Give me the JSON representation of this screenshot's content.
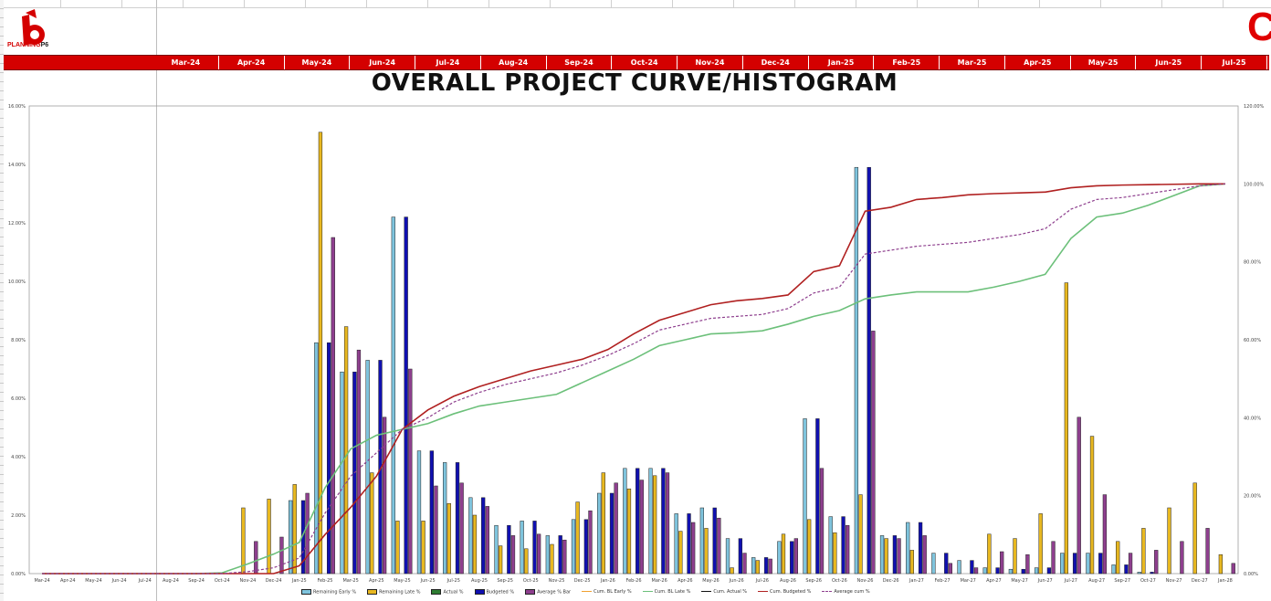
{
  "logo": {
    "text_red": "PLANNING",
    "text_dark": "P6"
  },
  "corner_letter": "C",
  "month_header": [
    "Mar-24",
    "Apr-24",
    "May-24",
    "Jun-24",
    "Jul-24",
    "Aug-24",
    "Sep-24",
    "Oct-24",
    "Nov-24",
    "Dec-24",
    "Jan-25",
    "Feb-25",
    "Mar-25",
    "Apr-25",
    "May-25",
    "Jun-25",
    "Jul-25"
  ],
  "chart_data": {
    "type": "bar",
    "title": "OVERALL PROJECT CURVE/HISTOGRAM",
    "categories": [
      "Mar-24",
      "Apr-24",
      "May-24",
      "Jun-24",
      "Jul-24",
      "Aug-24",
      "Sep-24",
      "Oct-24",
      "Nov-24",
      "Dec-24",
      "Jan-25",
      "Feb-25",
      "Mar-25",
      "Apr-25",
      "May-25",
      "Jun-25",
      "Jul-25",
      "Aug-25",
      "Sep-25",
      "Oct-25",
      "Nov-25",
      "Dec-25",
      "Jan-26",
      "Feb-26",
      "Mar-26",
      "Apr-26",
      "May-26",
      "Jun-26",
      "Jul-26",
      "Aug-26",
      "Sep-26",
      "Oct-26",
      "Nov-26",
      "Dec-26",
      "Jan-27",
      "Feb-27",
      "Mar-27",
      "Apr-27",
      "May-27",
      "Jun-27",
      "Jul-27",
      "Aug-27",
      "Sep-27",
      "Oct-27",
      "Nov-27",
      "Dec-27",
      "Jan-28"
    ],
    "y_left_ticks": [
      "0.00%",
      "2.00%",
      "4.00%",
      "6.00%",
      "8.00%",
      "10.00%",
      "12.00%",
      "14.00%",
      "16.00%"
    ],
    "y_right_ticks": [
      "0.00%",
      "20.00%",
      "40.00%",
      "60.00%",
      "80.00%",
      "100.00%",
      "120.00%"
    ],
    "ylim_left": [
      0,
      16
    ],
    "ylim_right": [
      0,
      120
    ],
    "grid": false,
    "legend_position": "bottom",
    "bar_series": [
      {
        "name": "Remaining Early  %",
        "color": "#7fc4dd",
        "values": [
          0,
          0,
          0,
          0,
          0,
          0,
          0,
          0,
          0,
          0,
          2.5,
          7.9,
          6.9,
          7.3,
          12.2,
          4.2,
          3.8,
          2.6,
          1.65,
          1.8,
          1.3,
          1.85,
          2.75,
          3.6,
          3.6,
          2.05,
          2.25,
          1.2,
          0.55,
          1.1,
          5.3,
          1.95,
          13.9,
          1.3,
          1.75,
          0.7,
          0.45,
          0.2,
          0.15,
          0.2,
          0.7,
          0.7,
          0.3,
          0.05,
          0,
          0,
          0
        ]
      },
      {
        "name": "Remaining Late  %",
        "color": "#e8b820",
        "values": [
          0,
          0,
          0,
          0,
          0,
          0,
          0,
          0,
          2.25,
          2.55,
          3.05,
          15.1,
          8.45,
          3.45,
          1.8,
          1.8,
          2.4,
          2.0,
          0.95,
          0.85,
          1.0,
          2.45,
          3.45,
          2.9,
          3.35,
          1.45,
          1.55,
          0.2,
          0.45,
          1.35,
          1.85,
          1.4,
          2.7,
          1.2,
          0.8,
          0,
          0,
          1.35,
          1.2,
          2.05,
          9.95,
          4.7,
          1.1,
          1.55,
          2.25,
          3.1,
          0.65
        ]
      },
      {
        "name": "Actual  %",
        "color": "#2e7d32",
        "values": [
          0,
          0,
          0,
          0,
          0,
          0,
          0,
          0,
          0,
          0,
          0,
          0,
          0,
          0,
          0,
          0,
          0,
          0,
          0,
          0,
          0,
          0,
          0,
          0,
          0,
          0,
          0,
          0,
          0,
          0,
          0,
          0,
          0,
          0,
          0,
          0,
          0,
          0,
          0,
          0,
          0,
          0,
          0,
          0,
          0,
          0,
          0
        ]
      },
      {
        "name": "Budgeted  %",
        "color": "#1010b0",
        "values": [
          0,
          0,
          0,
          0,
          0,
          0,
          0,
          0,
          0,
          0,
          2.5,
          7.9,
          6.9,
          7.3,
          12.2,
          4.2,
          3.8,
          2.6,
          1.65,
          1.8,
          1.3,
          1.85,
          2.75,
          3.6,
          3.6,
          2.05,
          2.25,
          1.2,
          0.55,
          1.1,
          5.3,
          1.95,
          13.9,
          1.3,
          1.75,
          0.7,
          0.45,
          0.2,
          0.15,
          0.2,
          0.7,
          0.7,
          0.3,
          0.05,
          0,
          0,
          0
        ]
      },
      {
        "name": "Average % Bar",
        "color": "#8e3f8e",
        "values": [
          0,
          0,
          0,
          0,
          0,
          0,
          0,
          0,
          1.1,
          1.25,
          2.75,
          11.5,
          7.65,
          5.35,
          7.0,
          3.0,
          3.1,
          2.3,
          1.3,
          1.35,
          1.15,
          2.15,
          3.1,
          3.2,
          3.45,
          1.75,
          1.9,
          0.7,
          0.5,
          1.2,
          3.6,
          1.65,
          8.3,
          1.2,
          1.3,
          0.35,
          0.2,
          0.75,
          0.65,
          1.1,
          5.35,
          2.7,
          0.7,
          0.8,
          1.1,
          1.55,
          0.35
        ]
      }
    ],
    "line_series": [
      {
        "name": "Cum. BL Early  %",
        "color": "#f0a030",
        "dash": false,
        "values": []
      },
      {
        "name": "Cum. BL Late  %",
        "color": "#6cc07a",
        "dash": false,
        "values": [
          0,
          0,
          0,
          0,
          0,
          0,
          0,
          0.2,
          2.5,
          5.0,
          8.0,
          22.0,
          32.0,
          35.5,
          37.0,
          38.5,
          41.0,
          43.0,
          44.0,
          45.0,
          46.0,
          49.0,
          52.0,
          55.0,
          58.5,
          60.0,
          61.5,
          61.8,
          62.3,
          64.0,
          66.0,
          67.5,
          70.5,
          71.5,
          72.3,
          72.3,
          72.3,
          73.5,
          75.0,
          76.8,
          86.0,
          91.5,
          92.5,
          94.5,
          97.0,
          99.5,
          100.0
        ]
      },
      {
        "name": "Cum. Actual  %",
        "color": "#111111",
        "dash": false,
        "values": []
      },
      {
        "name": "Cum. Budgeted  %",
        "color": "#b02020",
        "dash": false,
        "values": [
          0,
          0,
          0,
          0,
          0,
          0,
          0,
          0,
          0,
          0,
          2.0,
          10.0,
          17.0,
          25.0,
          37.0,
          42.0,
          45.5,
          48.0,
          50.0,
          52.0,
          53.5,
          55.0,
          57.5,
          61.5,
          65.0,
          67.0,
          69.0,
          70.0,
          70.6,
          71.5,
          77.5,
          79.0,
          93.0,
          94.0,
          96.0,
          96.5,
          97.2,
          97.5,
          97.7,
          97.9,
          99.0,
          99.5,
          99.7,
          99.8,
          99.9,
          100.0,
          100.0
        ]
      },
      {
        "name": "Average cum %",
        "color": "#8e3f8e",
        "dash": true,
        "values": [
          0,
          0,
          0,
          0,
          0,
          0,
          0,
          0,
          0.5,
          1.5,
          4.0,
          15.5,
          25.0,
          31.0,
          37.0,
          40.0,
          44.0,
          46.5,
          48.5,
          50.0,
          51.5,
          53.5,
          56.0,
          59.0,
          62.5,
          64.0,
          65.5,
          66.0,
          66.5,
          68.0,
          72.0,
          73.5,
          82.0,
          83.0,
          84.0,
          84.5,
          85.0,
          86.0,
          87.0,
          88.5,
          93.5,
          96.0,
          96.5,
          97.5,
          98.5,
          99.5,
          100.0
        ]
      }
    ]
  }
}
